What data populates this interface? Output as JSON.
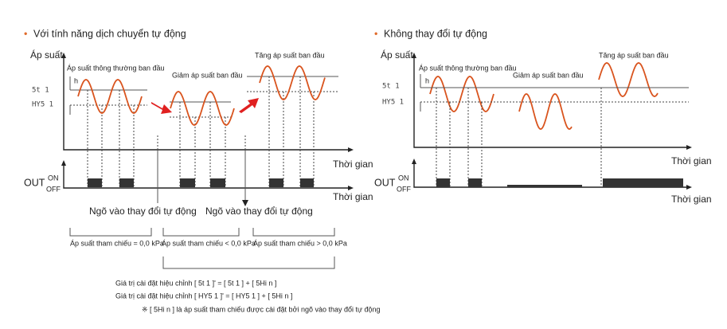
{
  "left_panel": {
    "title": "Với tính năng dịch chuyển tự động",
    "y_label": "Áp suất",
    "normal_label": "Áp suất thông thường ban đầu",
    "decrease_label": "Giảm áp suất ban đầu",
    "increase_label": "Tăng áp suất ban đầu",
    "h": "h",
    "st": "5t 1",
    "hys": "HY5 1",
    "time_label": "Thời gian",
    "out": "OUT",
    "on": "ON",
    "off": "OFF",
    "time_label_2": "Thời gian",
    "input_1": "Ngõ vào thay đổi tự động",
    "input_2": "Ngõ vào thay đổi tự động",
    "ref_1": "Áp suất tham chiếu = 0,0 kPa",
    "ref_2": "Áp suất tham chiếu < 0,0 kPa",
    "ref_3": "Áp suất tham chiếu > 0,0 kPa"
  },
  "right_panel": {
    "title": "Không thay đổi tự động",
    "y_label": "Áp suất",
    "normal_label": "Áp suất thông thường ban đầu",
    "decrease_label": "Giảm áp suất ban đầu",
    "increase_label": "Tăng áp suất ban đầu",
    "h": "h",
    "st": "5t 1",
    "hys": "HY5 1",
    "time_label": "Thời gian",
    "out": "OUT",
    "on": "ON",
    "off": "OFF",
    "time_label_2": "Thời gian"
  },
  "footnotes": [
    "Giá trị cài đặt hiệu chỉnh  [ 5t 1 ]'  =  [ 5t 1 ]  +  [ 5Hi n ]",
    "Giá trị cài đặt hiệu chỉnh  [ HY5 1 ]'  =  [ HY5 1 ]  +  [ 5Hi n ]",
    "※ [ 5Hi n ] là áp suất tham chiếu được cài đặt bởi ngõ vào thay đổi tự động"
  ]
}
